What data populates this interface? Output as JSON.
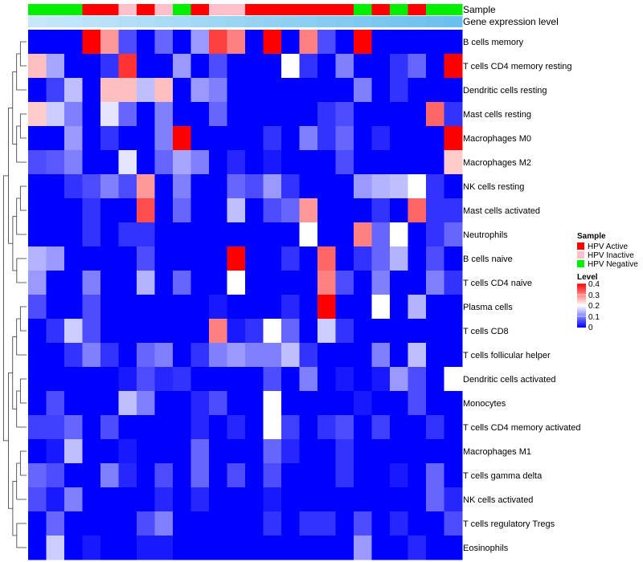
{
  "chart_data": {
    "type": "heatmap",
    "annotation_tracks": [
      "Sample",
      "Gene expression level"
    ],
    "sample_groups": [
      "HPV Negative",
      "HPV Negative",
      "HPV Negative",
      "HPV Active",
      "HPV Active",
      "HPV Inactive",
      "HPV Active",
      "HPV Inactive",
      "HPV Negative",
      "HPV Active",
      "HPV Inactive",
      "HPV Inactive",
      "HPV Active",
      "HPV Active",
      "HPV Active",
      "HPV Active",
      "HPV Active",
      "HPV Active",
      "HPV Negative",
      "HPV Active",
      "HPV Negative",
      "HPV Active",
      "HPV Negative",
      "HPV Negative"
    ],
    "gene_expression_level": [
      0.1,
      0.12,
      0.14,
      0.16,
      0.18,
      0.2,
      0.22,
      0.24,
      0.26,
      0.28,
      0.3,
      0.32,
      0.34,
      0.36,
      0.38,
      0.4,
      0.42,
      0.44,
      0.46,
      0.48,
      0.5,
      0.52,
      0.54,
      0.56
    ],
    "rows": [
      "B cells memory",
      "T cells CD4 memory resting",
      "Dendritic cells resting",
      "Mast cells resting",
      "Macrophages M0",
      "Macrophages M2",
      "NK cells resting",
      "Mast cells activated",
      "Neutrophils",
      "B cells naive",
      "T cells CD4 naive",
      "Plasma cells",
      "T cells CD8",
      "T cells follicular helper",
      "Dendritic cells activated",
      "Monocytes",
      "T cells CD4 memory activated",
      "Macrophages M1",
      "T cells gamma delta",
      "NK cells activated",
      "T cells regulatory  Tregs",
      "Eosinophils"
    ],
    "values": [
      [
        0,
        0,
        0,
        0.4,
        0.28,
        0.06,
        0,
        0.08,
        0,
        0.12,
        0.35,
        0.3,
        0,
        0.4,
        0,
        0.3,
        0.06,
        0,
        0.4,
        0,
        0,
        0,
        0,
        0
      ],
      [
        0.25,
        0.13,
        0,
        0,
        0.04,
        0.36,
        0,
        0,
        0.12,
        0,
        0.06,
        0,
        0,
        0,
        0.2,
        0.04,
        0,
        0.1,
        0,
        0,
        0.04,
        0.08,
        0,
        0.4
      ],
      [
        0,
        0.05,
        0.15,
        0,
        0.25,
        0.25,
        0.15,
        0.25,
        0,
        0.12,
        0.1,
        0,
        0,
        0,
        0,
        0,
        0,
        0,
        0.1,
        0,
        0.04,
        0,
        0,
        0
      ],
      [
        0.24,
        0.16,
        0.1,
        0,
        0.18,
        0.08,
        0,
        0.1,
        0,
        0,
        0.08,
        0,
        0,
        0,
        0,
        0,
        0.04,
        0.06,
        0,
        0,
        0,
        0,
        0.32,
        0.04
      ],
      [
        0,
        0,
        0.12,
        0,
        0.04,
        0,
        0,
        0.1,
        0.4,
        0,
        0,
        0,
        0,
        0.04,
        0,
        0.1,
        0.04,
        0.08,
        0,
        0.03,
        0,
        0,
        0,
        0.4
      ],
      [
        0.06,
        0.07,
        0.1,
        0,
        0,
        0.18,
        0,
        0.08,
        0.13,
        0.1,
        0,
        0.03,
        0,
        0.02,
        0,
        0,
        0,
        0.06,
        0,
        0,
        0,
        0,
        0,
        0.24
      ],
      [
        0,
        0,
        0.04,
        0.06,
        0.1,
        0.06,
        0.28,
        0,
        0.1,
        0,
        0,
        0.08,
        0.06,
        0.12,
        0.04,
        0,
        0,
        0,
        0.12,
        0.14,
        0.15,
        0.2,
        0.04,
        0
      ],
      [
        0,
        0,
        0,
        0.04,
        0,
        0,
        0.34,
        0,
        0.08,
        0,
        0,
        0.15,
        0,
        0.06,
        0.08,
        0.28,
        0,
        0,
        0,
        0.04,
        0,
        0.32,
        0.04,
        0.04
      ],
      [
        0,
        0,
        0,
        0.04,
        0,
        0.04,
        0.04,
        0,
        0,
        0,
        0,
        0,
        0,
        0,
        0,
        0.2,
        0,
        0,
        0.3,
        0.08,
        0.2,
        0,
        0.04,
        0.08
      ],
      [
        0.14,
        0.12,
        0,
        0,
        0,
        0,
        0.06,
        0,
        0,
        0,
        0,
        0.4,
        0,
        0,
        0.04,
        0,
        0.32,
        0,
        0.04,
        0.08,
        0.14,
        0,
        0.06,
        0
      ],
      [
        0.12,
        0,
        0,
        0.1,
        0,
        0,
        0.14,
        0,
        0.08,
        0,
        0,
        0.2,
        0,
        0,
        0,
        0,
        0.3,
        0.06,
        0,
        0.1,
        0,
        0,
        0.1,
        0.04
      ],
      [
        0.06,
        0,
        0,
        0.06,
        0,
        0,
        0,
        0,
        0,
        0,
        0.02,
        0,
        0,
        0,
        0.03,
        0,
        0.4,
        0,
        0,
        0.2,
        0,
        0.14,
        0,
        0
      ],
      [
        0,
        0.04,
        0.16,
        0.06,
        0,
        0,
        0,
        0,
        0,
        0,
        0.3,
        0.02,
        0.04,
        0.2,
        0.08,
        0,
        0.16,
        0.04,
        0,
        0,
        0,
        0,
        0,
        0
      ],
      [
        0,
        0,
        0.04,
        0.1,
        0.04,
        0,
        0.08,
        0.1,
        0,
        0.04,
        0.1,
        0.12,
        0.1,
        0.1,
        0.15,
        0.04,
        0,
        0,
        0,
        0.1,
        0,
        0.15,
        0,
        0
      ],
      [
        0,
        0,
        0,
        0,
        0,
        0.02,
        0.06,
        0.03,
        0.04,
        0,
        0,
        0,
        0,
        0.06,
        0,
        0.1,
        0,
        0.02,
        0,
        0.02,
        0.12,
        0.06,
        0,
        0.2
      ],
      [
        0,
        0.06,
        0,
        0,
        0,
        0.15,
        0.1,
        0,
        0,
        0.03,
        0.06,
        0,
        0,
        0.2,
        0,
        0,
        0,
        0,
        0.02,
        0,
        0,
        0.06,
        0,
        0
      ],
      [
        0.05,
        0.05,
        0.08,
        0,
        0.06,
        0,
        0,
        0,
        0,
        0.03,
        0,
        0.03,
        0,
        0.2,
        0.05,
        0,
        0.04,
        0.06,
        0,
        0.05,
        0,
        0,
        0.04,
        0
      ],
      [
        0,
        0.02,
        0.15,
        0,
        0,
        0.02,
        0,
        0,
        0,
        0.08,
        0,
        0,
        0,
        0.08,
        0.03,
        0,
        0,
        0.04,
        0,
        0,
        0,
        0,
        0,
        0
      ],
      [
        0.08,
        0.06,
        0,
        0,
        0.1,
        0.03,
        0,
        0.06,
        0,
        0.08,
        0,
        0.06,
        0,
        0.06,
        0,
        0,
        0,
        0.04,
        0,
        0,
        0.02,
        0,
        0.08,
        0
      ],
      [
        0.06,
        0.02,
        0.1,
        0,
        0,
        0,
        0,
        0.03,
        0,
        0.03,
        0,
        0,
        0,
        0.02,
        0,
        0,
        0,
        0,
        0,
        0,
        0,
        0,
        0.08,
        0.03
      ],
      [
        0,
        0.08,
        0,
        0,
        0,
        0,
        0.06,
        0.1,
        0,
        0,
        0,
        0,
        0,
        0.04,
        0,
        0.04,
        0.04,
        0,
        0.06,
        0,
        0.03,
        0,
        0,
        0.06
      ],
      [
        0,
        0.16,
        0,
        0.02,
        0,
        0,
        0.02,
        0.02,
        0,
        0,
        0,
        0,
        0,
        0,
        0,
        0,
        0,
        0,
        0.12,
        0,
        0,
        0.03,
        0,
        0
      ]
    ],
    "legend_sample_title": "Sample",
    "legend_sample": [
      {
        "label": "HPV Active",
        "color": "#ff0000"
      },
      {
        "label": "HPV Inactive",
        "color": "#ffc0cb"
      },
      {
        "label": "HPV Negative",
        "color": "#00ee00"
      }
    ],
    "legend_level_title": "Level",
    "legend_level_ticks": [
      "0.4",
      "0.3",
      "0.2",
      "0.1",
      "0"
    ],
    "level_range": [
      0,
      0.4
    ],
    "colors": {
      "low": "#0000ff",
      "mid": "#ffffff",
      "high": "#ff0000"
    }
  }
}
